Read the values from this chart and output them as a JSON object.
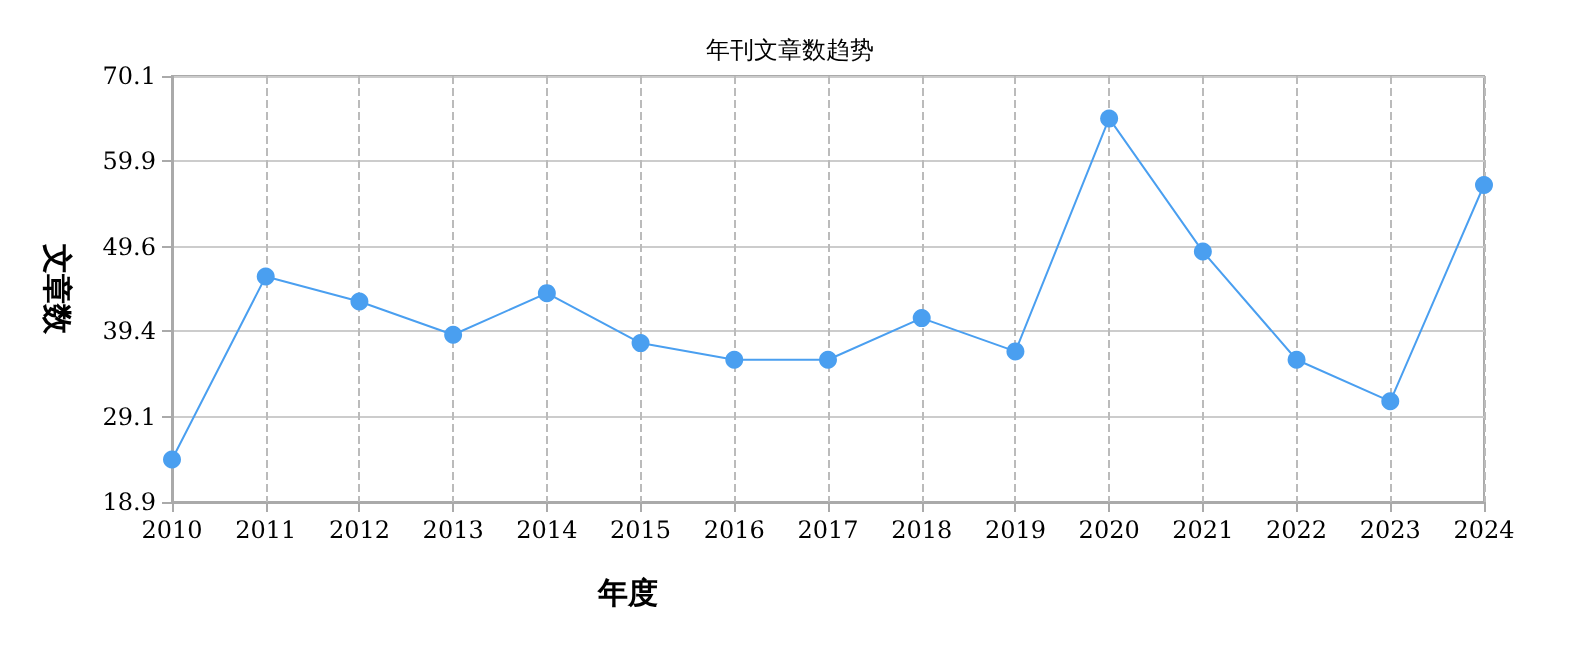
{
  "chart_data": {
    "type": "line",
    "title": "年刊文章数趋势",
    "xlabel": "年度",
    "ylabel": "文章数",
    "categories": [
      "2010",
      "2011",
      "2012",
      "2013",
      "2014",
      "2015",
      "2016",
      "2017",
      "2018",
      "2019",
      "2020",
      "2021",
      "2022",
      "2023",
      "2024"
    ],
    "series": [
      {
        "color": "#4a9ff0",
        "values": [
          24,
          46,
          43,
          39,
          44,
          38,
          36,
          36,
          41,
          37,
          65,
          49,
          36,
          31,
          57
        ]
      }
    ],
    "ylim": [
      18.9,
      70.1
    ],
    "yticks": [
      18.9,
      29.1,
      39.4,
      49.6,
      59.9,
      70.1
    ],
    "grid": true,
    "marker": "circle",
    "line_style": "solid"
  }
}
